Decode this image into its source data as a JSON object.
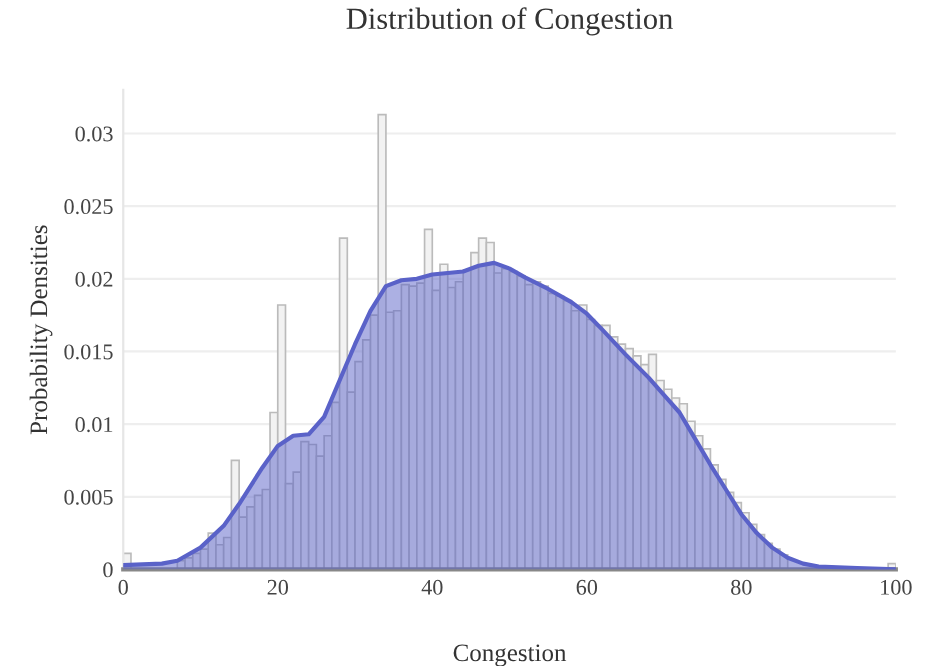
{
  "chart_data": {
    "type": "histogram",
    "title": "Distribution of Congestion",
    "xlabel": "Congestion",
    "ylabel": "Probability Densities",
    "bins": [
      0,
      1,
      2,
      3,
      4,
      5,
      6,
      7,
      8,
      9,
      10,
      11,
      12,
      13,
      14,
      15,
      16,
      17,
      18,
      19,
      20,
      21,
      22,
      23,
      24,
      25,
      26,
      27,
      28,
      29,
      30,
      31,
      32,
      33,
      34,
      35,
      36,
      37,
      38,
      39,
      40,
      41,
      42,
      43,
      44,
      45,
      46,
      47,
      48,
      49,
      50,
      51,
      52,
      53,
      54,
      55,
      56,
      57,
      58,
      59,
      60,
      61,
      62,
      63,
      64,
      65,
      66,
      67,
      68,
      69,
      70,
      71,
      72,
      73,
      74,
      75,
      76,
      77,
      78,
      79,
      80,
      81,
      82,
      83,
      84,
      85,
      86,
      87,
      88,
      89,
      90,
      91,
      92,
      93,
      94,
      95,
      96,
      97,
      98,
      99,
      100
    ],
    "series": [
      {
        "color": "#f2f2f2",
        "values": [
          0.0011,
          null,
          null,
          null,
          null,
          null,
          null,
          0.0006,
          0.0008,
          0.0011,
          0.0014,
          0.0025,
          0.0017,
          0.0022,
          0.0075,
          0.0036,
          0.0043,
          0.0051,
          0.0055,
          0.0108,
          0.0182,
          0.0059,
          0.0067,
          0.0088,
          0.0086,
          0.0078,
          0.0092,
          0.0115,
          0.0228,
          0.0122,
          0.0143,
          0.0158,
          0.0175,
          0.0313,
          0.0177,
          0.0178,
          0.0196,
          0.0195,
          0.0197,
          0.0234,
          0.0192,
          0.021,
          0.0194,
          0.0198,
          0.0206,
          0.0218,
          0.0228,
          0.0225,
          0.0204,
          0.0207,
          0.0205,
          0.0202,
          0.0196,
          0.0198,
          0.0195,
          0.019,
          0.0188,
          0.0185,
          0.0178,
          0.0182,
          0.0172,
          0.0168,
          0.0168,
          0.016,
          0.0155,
          0.0152,
          0.0147,
          0.0141,
          0.0148,
          0.013,
          0.0124,
          0.0118,
          0.0114,
          0.0102,
          0.0092,
          0.0083,
          0.0072,
          0.0062,
          0.0053,
          0.0046,
          0.0039,
          0.0031,
          0.0024,
          0.0018,
          0.0014,
          0.001,
          null,
          null,
          null,
          null,
          0.0002,
          0.0002,
          0.0001,
          0.0001,
          0.0001,
          0.0001,
          0.0001,
          0.0001,
          0.0001,
          0.0004
        ]
      },
      {
        "type": "area",
        "color": "#5a62c8",
        "x": [
          0,
          5,
          7,
          10,
          13,
          15,
          18,
          20,
          22,
          24,
          26,
          28,
          30,
          32,
          34,
          36,
          38,
          40,
          42,
          44,
          46,
          48,
          50,
          52,
          55,
          58,
          60,
          62,
          65,
          68,
          70,
          72,
          74,
          76,
          78,
          80,
          82,
          84,
          86,
          88,
          90,
          95,
          100
        ],
        "values": [
          0.0003,
          0.0004,
          0.0006,
          0.0015,
          0.003,
          0.0045,
          0.007,
          0.0085,
          0.0092,
          0.0093,
          0.0105,
          0.013,
          0.0155,
          0.0178,
          0.0195,
          0.0199,
          0.02,
          0.0203,
          0.0204,
          0.0205,
          0.0209,
          0.0211,
          0.0207,
          0.0201,
          0.0193,
          0.0184,
          0.0176,
          0.0165,
          0.0148,
          0.0132,
          0.012,
          0.0108,
          0.009,
          0.0072,
          0.0055,
          0.0038,
          0.0025,
          0.0015,
          0.0008,
          0.0004,
          0.0002,
          0.0001,
          0.0
        ]
      }
    ],
    "xlim": [
      0,
      100
    ],
    "xticks": [
      0,
      20,
      40,
      60,
      80,
      100
    ],
    "ylim": [
      0,
      0.033
    ],
    "yticks": [
      0,
      0.005,
      0.01,
      0.015,
      0.02,
      0.025,
      0.03
    ],
    "grid": "y"
  }
}
